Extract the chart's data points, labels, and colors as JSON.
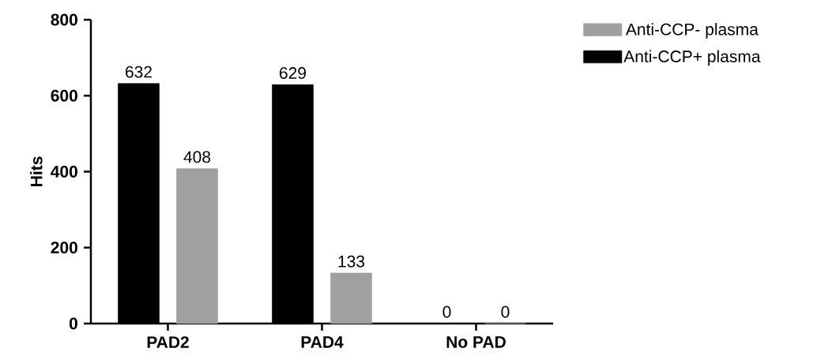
{
  "chart_data": {
    "type": "bar",
    "ylabel": "Hits",
    "categories": [
      "PAD2",
      "PAD4",
      "No PAD"
    ],
    "series": [
      {
        "name": "Anti-CCP+ plasma",
        "color": "#000000",
        "values": [
          632,
          629,
          0
        ]
      },
      {
        "name": "Anti-CCP- plasma",
        "color": "#a0a0a0",
        "values": [
          408,
          133,
          0
        ]
      }
    ],
    "ylim": [
      0,
      800
    ],
    "yticks": [
      0,
      200,
      400,
      600,
      800
    ],
    "data_labels": true,
    "legend": "top right",
    "grid": false
  }
}
